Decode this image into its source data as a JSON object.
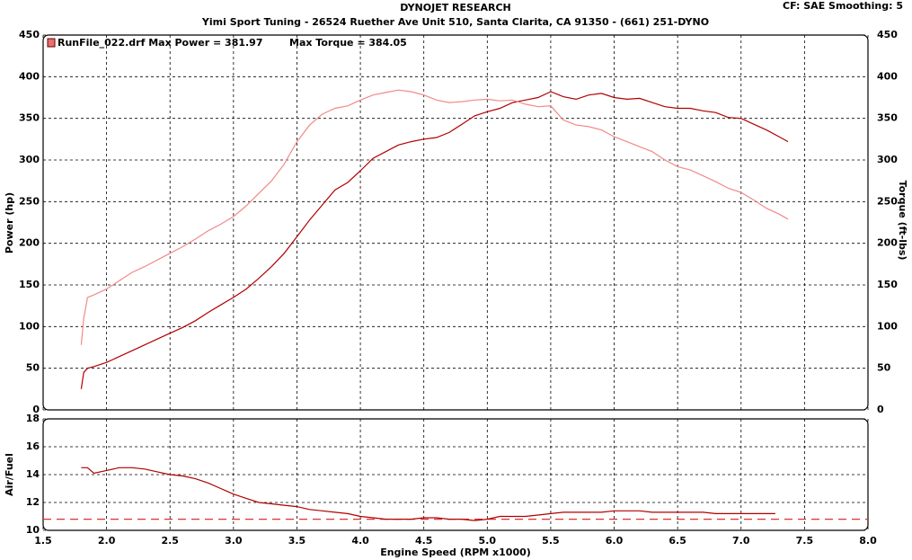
{
  "chart_data": [
    {
      "type": "line",
      "title": "DYNOJET RESEARCH",
      "subtitle": "Yimi Sport Tuning - 26524 Ruether Ave Unit 510, Santa Clarita, CA 91350 - (661) 251-DYNO",
      "note": "CF: SAE  Smoothing: 5",
      "legend_text": [
        "RunFile_022.drf Max Power = 381.97",
        "Max Torque = 384.05"
      ],
      "legend_color": "#e87070",
      "y_label": "Power (hp)",
      "y2_label": "Torque (ft-lbs)",
      "xlim": [
        1.5,
        8.0
      ],
      "ylim": [
        0,
        450
      ],
      "yticks": [
        0,
        50,
        100,
        150,
        200,
        250,
        300,
        350,
        400,
        450
      ],
      "y2lim": [
        0,
        450
      ],
      "y2ticks": [
        0,
        50,
        100,
        150,
        200,
        250,
        300,
        350,
        400,
        450
      ],
      "grid": true,
      "x": [
        1.8,
        1.82,
        1.85,
        1.9,
        2.0,
        2.1,
        2.2,
        2.3,
        2.4,
        2.5,
        2.6,
        2.7,
        2.8,
        2.9,
        3.0,
        3.1,
        3.2,
        3.3,
        3.4,
        3.5,
        3.6,
        3.7,
        3.8,
        3.9,
        4.0,
        4.1,
        4.2,
        4.3,
        4.4,
        4.5,
        4.6,
        4.7,
        4.8,
        4.9,
        5.0,
        5.1,
        5.2,
        5.3,
        5.4,
        5.5,
        5.6,
        5.7,
        5.8,
        5.9,
        6.0,
        6.1,
        6.2,
        6.3,
        6.4,
        6.5,
        6.6,
        6.7,
        6.8,
        6.9,
        7.0,
        7.1,
        7.2,
        7.3,
        7.37
      ],
      "series": [
        {
          "color": "#b00000",
          "values": [
            25,
            45,
            50,
            52,
            57,
            64,
            71,
            78,
            85,
            92,
            99,
            107,
            117,
            126,
            135,
            145,
            158,
            172,
            188,
            208,
            228,
            246,
            264,
            273,
            287,
            302,
            310,
            318,
            322,
            325,
            327,
            333,
            343,
            353,
            358,
            362,
            369,
            372,
            375,
            382,
            376,
            373,
            378,
            380,
            375,
            373,
            374,
            369,
            364,
            362,
            362,
            359,
            357,
            351,
            350,
            343,
            336,
            328,
            322
          ]
        },
        {
          "color": "#f08a8a",
          "axis": "y2",
          "values": [
            78,
            110,
            135,
            138,
            145,
            155,
            165,
            172,
            180,
            188,
            196,
            205,
            215,
            223,
            232,
            245,
            260,
            275,
            295,
            322,
            342,
            355,
            362,
            365,
            372,
            378,
            381,
            384,
            382,
            378,
            372,
            369,
            370,
            372,
            373,
            371,
            372,
            367,
            364,
            365,
            348,
            342,
            340,
            336,
            328,
            322,
            316,
            310,
            300,
            292,
            288,
            281,
            274,
            266,
            261,
            252,
            242,
            235,
            229
          ]
        }
      ]
    },
    {
      "type": "line",
      "y_label": "Air/Fuel",
      "x_label": "Engine Speed (RPM x1000)",
      "xlim": [
        1.5,
        8.0
      ],
      "xticks": [
        1.5,
        {
          "value": 2,
          "label": "2.0"
        },
        2.5,
        {
          "value": 3,
          "label": "3.0"
        },
        3.5,
        {
          "value": 4,
          "label": "4.0"
        },
        4.5,
        {
          "value": 5,
          "label": "5.0"
        },
        5.5,
        {
          "value": 6,
          "label": "6.0"
        },
        6.5,
        {
          "value": 7,
          "label": "7.0"
        },
        7.5,
        {
          "value": 8,
          "label": "8.0"
        }
      ],
      "ylim": [
        10,
        18
      ],
      "yticks": [
        10,
        12,
        14,
        16,
        18
      ],
      "grid": true,
      "reference_line": {
        "value": 10.8,
        "color": "#e03030"
      },
      "x": [
        1.8,
        1.85,
        1.9,
        2.0,
        2.1,
        2.2,
        2.3,
        2.4,
        2.5,
        2.6,
        2.7,
        2.8,
        2.9,
        3.0,
        3.1,
        3.2,
        3.3,
        3.4,
        3.5,
        3.6,
        3.7,
        3.8,
        3.9,
        4.0,
        4.1,
        4.2,
        4.3,
        4.4,
        4.5,
        4.6,
        4.7,
        4.8,
        4.9,
        5.0,
        5.1,
        5.2,
        5.3,
        5.4,
        5.5,
        5.6,
        5.7,
        5.8,
        5.9,
        6.0,
        6.1,
        6.2,
        6.3,
        6.4,
        6.5,
        6.6,
        6.7,
        6.8,
        6.9,
        7.0,
        7.1,
        7.2,
        7.27
      ],
      "series": [
        {
          "color": "#b00000",
          "values": [
            14.5,
            14.5,
            14.1,
            14.3,
            14.5,
            14.5,
            14.4,
            14.2,
            14.0,
            13.9,
            13.7,
            13.4,
            13.0,
            12.6,
            12.3,
            12.0,
            11.9,
            11.8,
            11.7,
            11.5,
            11.4,
            11.3,
            11.2,
            11.0,
            10.9,
            10.8,
            10.8,
            10.8,
            10.9,
            10.9,
            10.8,
            10.8,
            10.7,
            10.8,
            11.0,
            11.0,
            11.0,
            11.1,
            11.2,
            11.3,
            11.3,
            11.3,
            11.3,
            11.4,
            11.4,
            11.4,
            11.3,
            11.3,
            11.3,
            11.3,
            11.3,
            11.2,
            11.2,
            11.2,
            11.2,
            11.2,
            11.2
          ]
        }
      ]
    }
  ]
}
